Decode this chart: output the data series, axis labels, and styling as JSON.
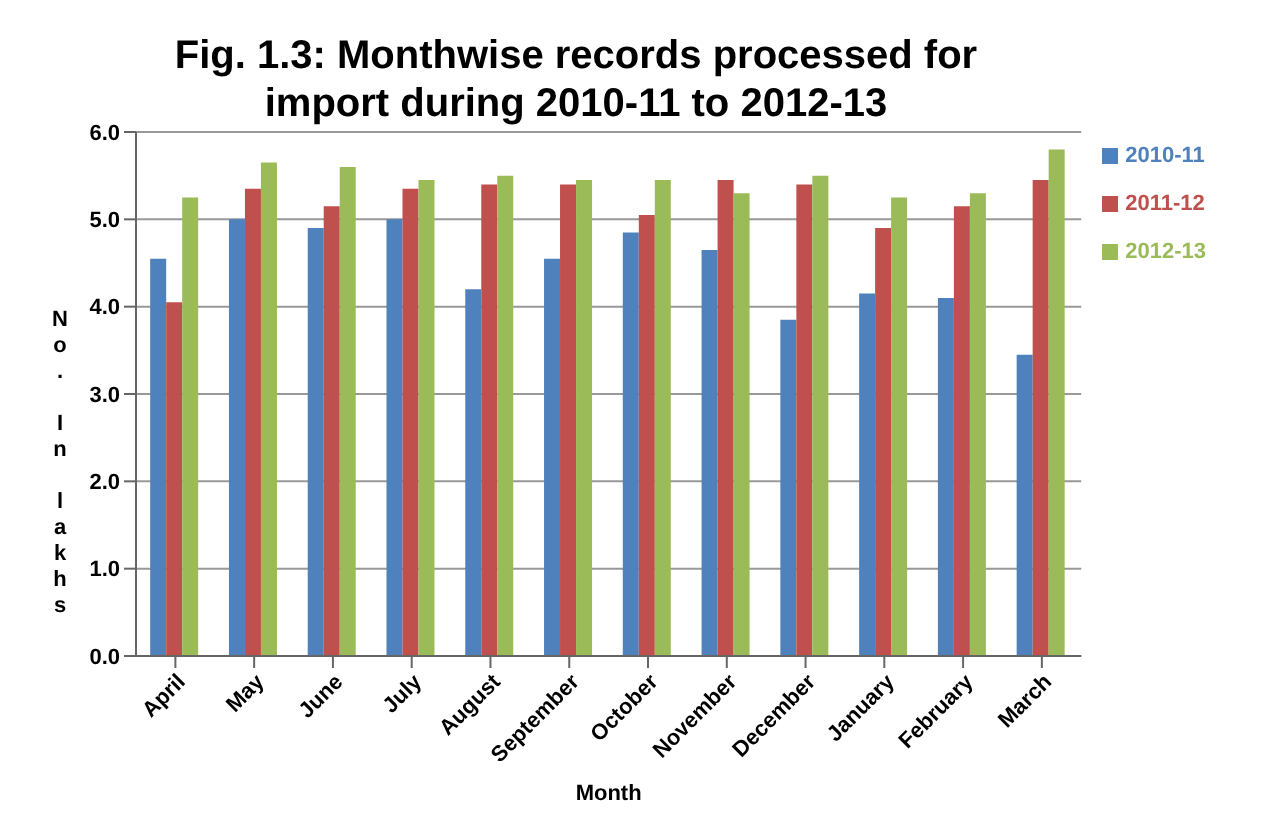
{
  "chart_data": {
    "type": "bar",
    "title": "Fig. 1.3: Monthwise records processed for import during 2010-11 to 2012-13",
    "xlabel": "Month",
    "ylabel": "No. In lakhs",
    "categories": [
      "April",
      "May",
      "June",
      "July",
      "August",
      "September",
      "October",
      "November",
      "December",
      "January",
      "February",
      "March"
    ],
    "series": [
      {
        "name": "2010-11",
        "color": "#4f81bd",
        "values": [
          4.55,
          5.0,
          4.9,
          5.0,
          4.2,
          4.55,
          4.85,
          4.65,
          3.85,
          4.15,
          4.1,
          3.45
        ]
      },
      {
        "name": "2011-12",
        "color": "#c0504d",
        "values": [
          4.05,
          5.35,
          5.15,
          5.35,
          5.4,
          5.4,
          5.05,
          5.45,
          5.4,
          4.9,
          5.15,
          5.45
        ]
      },
      {
        "name": "2012-13",
        "color": "#9bbb59",
        "values": [
          5.25,
          5.65,
          5.6,
          5.45,
          5.5,
          5.45,
          5.45,
          5.3,
          5.5,
          5.25,
          5.3,
          5.8
        ]
      }
    ],
    "ylim": [
      0,
      6
    ],
    "yticks": [
      {
        "value": 0,
        "label": "0.0"
      },
      {
        "value": 1,
        "label": "1.0"
      },
      {
        "value": 2,
        "label": "2.0"
      },
      {
        "value": 3,
        "label": "3.0"
      },
      {
        "value": 4,
        "label": "4.0"
      },
      {
        "value": 5,
        "label": "5.0"
      },
      {
        "value": 6,
        "label": "6.0"
      }
    ],
    "grid": "y",
    "legend": "top right"
  }
}
